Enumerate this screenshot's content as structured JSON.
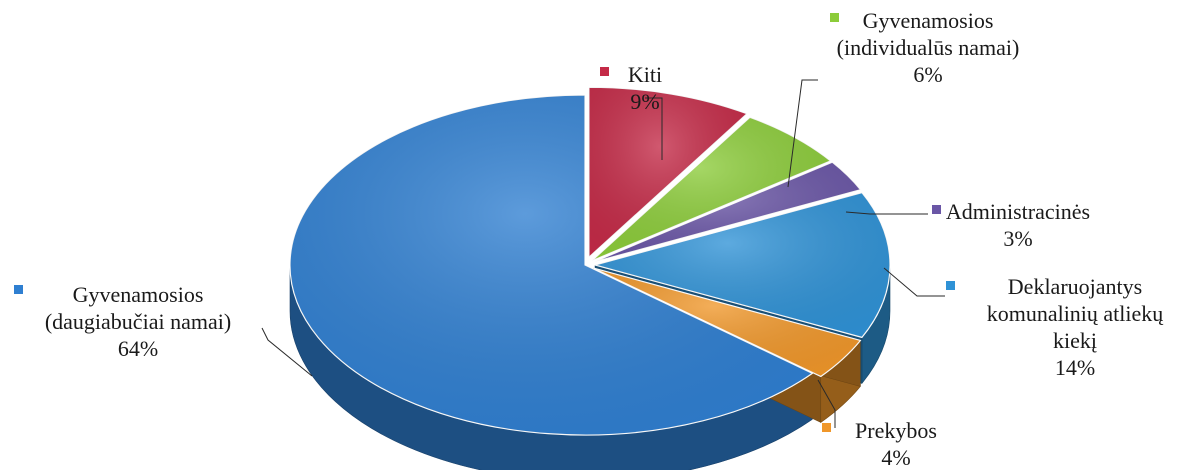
{
  "chart_data": {
    "type": "pie",
    "title": "",
    "slices": [
      {
        "label_lines": [
          "Kiti"
        ],
        "value": 9,
        "value_label": "9%",
        "color": "#c42a47"
      },
      {
        "label_lines": [
          "Gyvenamosios",
          "(individualūs namai)"
        ],
        "value": 6,
        "value_label": "6%",
        "color": "#8ccc3a"
      },
      {
        "label_lines": [
          "Administracinės"
        ],
        "value": 3,
        "value_label": "3%",
        "color": "#6a56a6"
      },
      {
        "label_lines": [
          "Deklaruojantys",
          "komunalinių atliekų",
          "kiekį"
        ],
        "value": 14,
        "value_label": "14%",
        "color": "#2f92d6"
      },
      {
        "label_lines": [
          "Prekybos"
        ],
        "value": 4,
        "value_label": "4%",
        "color": "#f0972a"
      },
      {
        "label_lines": [
          "Gyvenamosios",
          "(daugiabučiai namai)"
        ],
        "value": 64,
        "value_label": "64%",
        "color": "#2f7fd1"
      }
    ],
    "legend": "labels beside slices with colored square markers"
  }
}
